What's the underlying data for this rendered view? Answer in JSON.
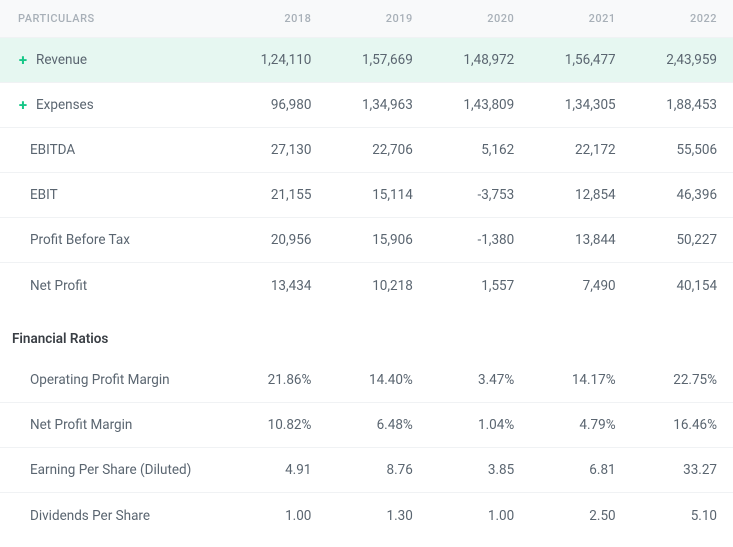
{
  "colors": {
    "highlight_bg": "#e6f7f1",
    "header_bg": "#f8f9fa",
    "expand_icon": "#17c788",
    "text": "#5a6570",
    "muted": "#a8b0b8",
    "border": "#f0f2f4"
  },
  "header": {
    "particulars": "PARTICULARS",
    "years": [
      "2018",
      "2019",
      "2020",
      "2021",
      "2022"
    ]
  },
  "rows": [
    {
      "label": "Revenue",
      "expandable": true,
      "highlight": true,
      "values": [
        "1,24,110",
        "1,57,669",
        "1,48,972",
        "1,56,477",
        "2,43,959"
      ]
    },
    {
      "label": "Expenses",
      "expandable": true,
      "highlight": false,
      "values": [
        "96,980",
        "1,34,963",
        "1,43,809",
        "1,34,305",
        "1,88,453"
      ]
    },
    {
      "label": "EBITDA",
      "indent": true,
      "values": [
        "27,130",
        "22,706",
        "5,162",
        "22,172",
        "55,506"
      ]
    },
    {
      "label": "EBIT",
      "indent": true,
      "values": [
        "21,155",
        "15,114",
        "-3,753",
        "12,854",
        "46,396"
      ]
    },
    {
      "label": "Profit Before Tax",
      "indent": true,
      "values": [
        "20,956",
        "15,906",
        "-1,380",
        "13,844",
        "50,227"
      ]
    },
    {
      "label": "Net Profit",
      "indent": true,
      "values": [
        "13,434",
        "10,218",
        "1,557",
        "7,490",
        "40,154"
      ]
    }
  ],
  "section": {
    "title": "Financial Ratios"
  },
  "ratio_rows": [
    {
      "label": "Operating Profit Margin",
      "indent": true,
      "values": [
        "21.86%",
        "14.40%",
        "3.47%",
        "14.17%",
        "22.75%"
      ]
    },
    {
      "label": "Net Profit Margin",
      "indent": true,
      "values": [
        "10.82%",
        "6.48%",
        "1.04%",
        "4.79%",
        "16.46%"
      ]
    },
    {
      "label": "Earning Per Share (Diluted)",
      "indent": true,
      "values": [
        "4.91",
        "8.76",
        "3.85",
        "6.81",
        "33.27"
      ]
    },
    {
      "label": "Dividends Per Share",
      "indent": true,
      "values": [
        "1.00",
        "1.30",
        "1.00",
        "2.50",
        "5.10"
      ]
    }
  ]
}
